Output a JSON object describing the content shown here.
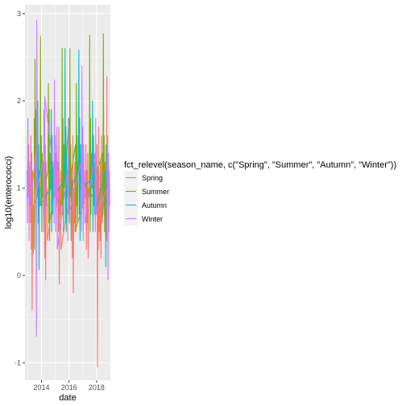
{
  "chart_data": {
    "type": "line",
    "xlabel": "date",
    "ylabel": "log10(enterococci)",
    "legend_title": "fct_relevel(season_name, c(\"Spring\", \"Summer\", \"Autumn\", \"Winter\"))",
    "legend_position": "right",
    "grid": true,
    "xlim": [
      2012.8,
      2019.0
    ],
    "ylim": [
      -1.2,
      3.1
    ],
    "x_ticks": [
      2014,
      2016,
      2018
    ],
    "x_tick_labels": [
      "2014",
      "2016",
      "2018"
    ],
    "y_ticks": [
      -1,
      0,
      1,
      2,
      3
    ],
    "y_tick_labels": [
      "-1",
      "0",
      "1",
      "2",
      "3"
    ],
    "series": [
      {
        "name": "Spring",
        "color": "#F8766D",
        "points": [
          [
            2013.2,
            0.6
          ],
          [
            2013.23,
            1.6
          ],
          [
            2013.26,
            0.3
          ],
          [
            2013.29,
            1.4
          ],
          [
            2013.32,
            -0.4
          ],
          [
            2013.35,
            1.2
          ],
          [
            2013.38,
            0.5
          ],
          [
            2013.41,
            0.25
          ],
          [
            2013.44,
            0.8
          ],
          [
            2014.21,
            1.1
          ],
          [
            2014.24,
            0.2
          ],
          [
            2014.27,
            1.5
          ],
          [
            2014.3,
            -0.05
          ],
          [
            2014.33,
            1.3
          ],
          [
            2014.36,
            0.8
          ],
          [
            2014.4,
            1.0
          ],
          [
            2014.43,
            0.4
          ],
          [
            2015.2,
            1.3
          ],
          [
            2015.23,
            0.5
          ],
          [
            2015.26,
            1.7
          ],
          [
            2015.29,
            -0.1
          ],
          [
            2015.32,
            1.0
          ],
          [
            2015.36,
            0.7
          ],
          [
            2015.39,
            1.2
          ],
          [
            2015.42,
            0.3
          ],
          [
            2016.21,
            1.1
          ],
          [
            2016.24,
            0.2
          ],
          [
            2016.28,
            1.6
          ],
          [
            2016.31,
            -0.2
          ],
          [
            2016.34,
            1.0
          ],
          [
            2016.37,
            0.6
          ],
          [
            2016.41,
            1.3
          ],
          [
            2016.44,
            0.5
          ],
          [
            2017.2,
            0.9
          ],
          [
            2017.23,
            1.5
          ],
          [
            2017.26,
            0.3
          ],
          [
            2017.29,
            1.2
          ],
          [
            2017.32,
            0.6
          ],
          [
            2017.36,
            1.4
          ],
          [
            2017.39,
            0.2
          ],
          [
            2017.42,
            1.0
          ],
          [
            2018.0,
            0.8
          ],
          [
            2018.03,
            1.5
          ],
          [
            2018.06,
            -1.05
          ],
          [
            2018.09,
            1.2
          ],
          [
            2018.12,
            0.3
          ],
          [
            2018.15,
            1.7
          ],
          [
            2018.18,
            0.5
          ],
          [
            2018.21,
            1.0
          ],
          [
            2018.25,
            0.4
          ],
          [
            2018.28,
            1.3
          ],
          [
            2018.32,
            0.2
          ],
          [
            2018.36,
            1.6
          ],
          [
            2018.4,
            0.6
          ],
          [
            2018.71,
            1.2
          ],
          [
            2018.73,
            0.4
          ],
          [
            2018.75,
            2.28
          ]
        ]
      },
      {
        "name": "Summer",
        "color": "#7CAE00",
        "points": [
          [
            2013.47,
            1.8
          ],
          [
            2013.5,
            0.3
          ],
          [
            2013.53,
            2.48
          ],
          [
            2013.56,
            1.0
          ],
          [
            2013.59,
            1.9
          ],
          [
            2013.62,
            0.6
          ],
          [
            2013.65,
            1.5
          ],
          [
            2013.68,
            0.9
          ],
          [
            2013.9,
            1.2
          ],
          [
            2013.93,
            2.74
          ],
          [
            2013.96,
            0.8
          ],
          [
            2013.99,
            1.6
          ],
          [
            2014.02,
            0.5
          ],
          [
            2014.05,
            1.4
          ],
          [
            2014.09,
            0.9
          ],
          [
            2014.47,
            1.2
          ],
          [
            2014.5,
            2.2
          ],
          [
            2014.53,
            0.6
          ],
          [
            2014.56,
            1.9
          ],
          [
            2014.59,
            0.4
          ],
          [
            2014.62,
            1.4
          ],
          [
            2014.65,
            1.0
          ],
          [
            2015.47,
            0.8
          ],
          [
            2015.5,
            2.6
          ],
          [
            2015.53,
            0.7
          ],
          [
            2015.56,
            1.8
          ],
          [
            2015.59,
            0.5
          ],
          [
            2015.62,
            1.5
          ],
          [
            2015.65,
            1.0
          ],
          [
            2016.0,
            1.8
          ],
          [
            2016.03,
            0.6
          ],
          [
            2016.06,
            2.6
          ],
          [
            2016.09,
            0.9
          ],
          [
            2016.12,
            1.5
          ],
          [
            2016.15,
            0.4
          ],
          [
            2016.18,
            1.2
          ],
          [
            2016.47,
            1.5
          ],
          [
            2016.5,
            0.5
          ],
          [
            2016.53,
            2.2
          ],
          [
            2016.56,
            0.8
          ],
          [
            2016.59,
            1.6
          ],
          [
            2016.62,
            0.6
          ],
          [
            2016.65,
            1.3
          ],
          [
            2017.47,
            0.9
          ],
          [
            2017.5,
            2.75
          ],
          [
            2017.53,
            0.5
          ],
          [
            2017.56,
            1.8
          ],
          [
            2017.59,
            0.7
          ],
          [
            2017.62,
            1.4
          ],
          [
            2017.65,
            1.0
          ],
          [
            2018.43,
            1.4
          ],
          [
            2018.46,
            0.7
          ],
          [
            2018.49,
            2.77
          ],
          [
            2018.52,
            0.9
          ],
          [
            2018.55,
            1.6
          ],
          [
            2018.58,
            0.5
          ],
          [
            2018.61,
            1.3
          ]
        ]
      },
      {
        "name": "Autumn",
        "color": "#00BFC4",
        "points": [
          [
            2013.7,
            1.0
          ],
          [
            2013.73,
            2.0
          ],
          [
            2013.76,
            0.6
          ],
          [
            2013.79,
            1.5
          ],
          [
            2013.82,
            0.07
          ],
          [
            2013.85,
            1.2
          ],
          [
            2013.88,
            0.8
          ],
          [
            2014.68,
            1.0
          ],
          [
            2014.71,
            1.9
          ],
          [
            2014.74,
            0.5
          ],
          [
            2014.77,
            1.6
          ],
          [
            2014.8,
            0.7
          ],
          [
            2014.83,
            1.3
          ],
          [
            2014.86,
            0.9
          ],
          [
            2015.68,
            1.1
          ],
          [
            2015.71,
            2.6
          ],
          [
            2015.74,
            0.6
          ],
          [
            2015.77,
            1.7
          ],
          [
            2015.8,
            0.5
          ],
          [
            2015.83,
            1.4
          ],
          [
            2015.86,
            0.9
          ],
          [
            2016.68,
            1.2
          ],
          [
            2016.71,
            2.58
          ],
          [
            2016.74,
            0.7
          ],
          [
            2016.77,
            1.8
          ],
          [
            2016.8,
            0.4
          ],
          [
            2016.84,
            1.5
          ],
          [
            2016.87,
            1.0
          ],
          [
            2017.68,
            1.1
          ],
          [
            2017.71,
            2.0
          ],
          [
            2017.74,
            0.5
          ],
          [
            2017.77,
            1.6
          ],
          [
            2017.8,
            0.8
          ],
          [
            2017.83,
            1.3
          ],
          [
            2017.86,
            0.7
          ],
          [
            2018.64,
            1.2
          ],
          [
            2018.67,
            0.1
          ],
          [
            2018.69,
            1.5
          ]
        ]
      },
      {
        "name": "Winter",
        "color": "#C77CFF",
        "points": [
          [
            2012.95,
            1.2
          ],
          [
            2012.98,
            0.6
          ],
          [
            2013.01,
            1.8
          ],
          [
            2013.04,
            0.9
          ],
          [
            2013.07,
            1.5
          ],
          [
            2013.1,
            0.4
          ],
          [
            2013.13,
            1.3
          ],
          [
            2013.16,
            0.8
          ],
          [
            2013.6,
            1.4
          ],
          [
            2013.63,
            -0.7
          ],
          [
            2013.66,
            2.92
          ],
          [
            2013.69,
            1.0
          ],
          [
            2014.12,
            1.3
          ],
          [
            2014.15,
            0.5
          ],
          [
            2014.18,
            1.9
          ],
          [
            2014.21,
            0.7
          ],
          [
            2014.24,
            2.05
          ],
          [
            2014.88,
            1.2
          ],
          [
            2014.91,
            0.6
          ],
          [
            2014.94,
            2.24
          ],
          [
            2014.97,
            0.9
          ],
          [
            2015.0,
            1.6
          ],
          [
            2015.03,
            0.5
          ],
          [
            2015.06,
            1.4
          ],
          [
            2015.09,
            0.8
          ],
          [
            2015.12,
            1.7
          ],
          [
            2015.15,
            0.3
          ],
          [
            2015.89,
            1.2
          ],
          [
            2015.92,
            0.4
          ],
          [
            2015.95,
            1.8
          ],
          [
            2015.98,
            0.7
          ],
          [
            2016.88,
            1.3
          ],
          [
            2016.91,
            0.5
          ],
          [
            2016.94,
            2.4
          ],
          [
            2016.97,
            0.8
          ],
          [
            2017.0,
            1.7
          ],
          [
            2017.03,
            0.4
          ],
          [
            2017.06,
            1.5
          ],
          [
            2017.09,
            0.9
          ],
          [
            2017.12,
            1.2
          ],
          [
            2017.15,
            0.6
          ],
          [
            2017.88,
            1.4
          ],
          [
            2017.91,
            0.5
          ],
          [
            2017.94,
            1.8
          ],
          [
            2017.97,
            0.7
          ],
          [
            2018.77,
            1.0
          ],
          [
            2018.8,
            1.6
          ],
          [
            2018.83,
            -0.05
          ],
          [
            2018.86,
            1.4
          ],
          [
            2018.89,
            0.5
          ],
          [
            2018.92,
            1.2
          ],
          [
            2018.95,
            0.8
          ]
        ]
      }
    ]
  }
}
